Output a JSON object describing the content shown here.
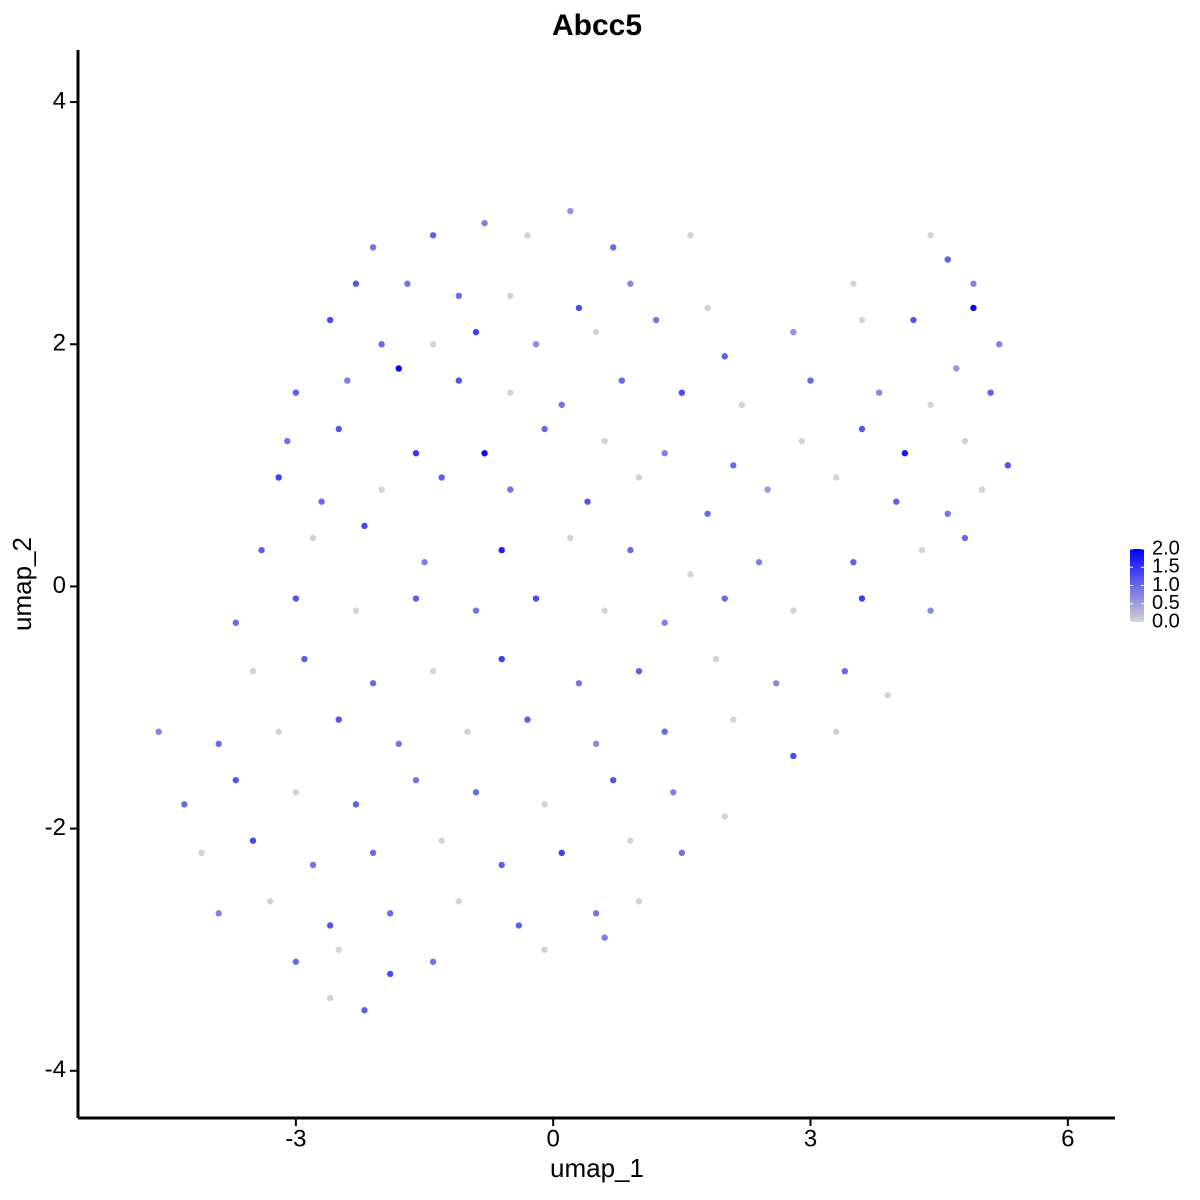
{
  "chart_data": {
    "type": "scatter",
    "title": "Abcc5",
    "xlabel": "umap_1",
    "ylabel": "umap_2",
    "xlim": [
      -5.54,
      6.55
    ],
    "ylim": [
      -4.39,
      4.43
    ],
    "xticks": [
      -3,
      0,
      3,
      6
    ],
    "yticks": [
      -4,
      -2,
      0,
      2,
      4
    ],
    "grid": false,
    "color_scale": {
      "low": "#d3d3d3",
      "high": "#0000ff",
      "limits": [
        0,
        2.0
      ],
      "ticks": [
        {
          "value": 2,
          "label": "2.0"
        },
        1.5,
        {
          "value": 1,
          "label": "1.0"
        },
        0.5,
        {
          "value": 0,
          "label": "0.0"
        }
      ]
    },
    "x": [
      -2.1,
      -1.4,
      -0.8,
      -0.3,
      0.2,
      0.7,
      1.6,
      -2.3,
      -1.7,
      -1.1,
      -0.5,
      0.3,
      0.9,
      4.4,
      4.6,
      4.9,
      3.5,
      -2.6,
      -2.0,
      -1.4,
      -0.9,
      -0.2,
      0.5,
      1.2,
      2.0,
      2.8,
      3.6,
      4.2,
      4.9,
      5.2,
      1.8,
      -3.0,
      -2.4,
      -1.8,
      -1.1,
      -0.5,
      0.1,
      0.8,
      1.5,
      2.2,
      3.0,
      3.8,
      4.4,
      5.1,
      4.7,
      -3.1,
      -2.5,
      -1.6,
      -0.8,
      -0.1,
      0.6,
      1.3,
      2.1,
      2.9,
      3.6,
      4.1,
      4.8,
      5.3,
      -3.2,
      -2.7,
      -2.0,
      -1.3,
      -0.5,
      0.4,
      1.0,
      1.8,
      2.5,
      3.3,
      4.0,
      4.6,
      5.0,
      -3.4,
      -2.8,
      -2.2,
      -1.5,
      -0.6,
      0.2,
      0.9,
      1.6,
      2.4,
      3.5,
      4.3,
      4.8,
      -3.7,
      -3.0,
      -2.3,
      -1.6,
      -0.9,
      -0.2,
      0.6,
      1.3,
      2.0,
      2.8,
      3.6,
      4.4,
      -3.5,
      -2.9,
      -2.1,
      -1.4,
      -0.6,
      0.3,
      1.0,
      1.9,
      2.6,
      3.4,
      3.9,
      -4.6,
      -3.9,
      -3.2,
      -2.5,
      -1.8,
      -1.0,
      -0.3,
      0.5,
      1.3,
      2.1,
      2.8,
      3.3,
      -4.3,
      -3.7,
      -3.0,
      -2.3,
      -1.6,
      -0.9,
      -0.1,
      0.7,
      1.4,
      2.0,
      -4.1,
      -3.5,
      -2.8,
      -2.1,
      -1.3,
      -0.6,
      0.1,
      0.9,
      1.5,
      -3.9,
      -3.3,
      -2.6,
      -1.9,
      -1.1,
      -0.4,
      0.5,
      1.0,
      -3.0,
      -2.5,
      -1.9,
      -1.4,
      -0.1,
      0.6,
      -2.6,
      -2.2
    ],
    "y": [
      2.8,
      2.9,
      3.0,
      2.9,
      3.1,
      2.8,
      2.9,
      2.5,
      2.5,
      2.4,
      2.4,
      2.3,
      2.5,
      2.9,
      2.7,
      2.5,
      2.5,
      2.2,
      2.0,
      2.0,
      2.1,
      2.0,
      2.1,
      2.2,
      1.9,
      2.1,
      2.2,
      2.2,
      2.3,
      2.0,
      2.3,
      1.6,
      1.7,
      1.8,
      1.7,
      1.6,
      1.5,
      1.7,
      1.6,
      1.5,
      1.7,
      1.6,
      1.5,
      1.6,
      1.8,
      1.2,
      1.3,
      1.1,
      1.1,
      1.3,
      1.2,
      1.1,
      1.0,
      1.2,
      1.3,
      1.1,
      1.2,
      1.0,
      0.9,
      0.7,
      0.8,
      0.9,
      0.8,
      0.7,
      0.9,
      0.6,
      0.8,
      0.9,
      0.7,
      0.6,
      0.8,
      0.3,
      0.4,
      0.5,
      0.2,
      0.3,
      0.4,
      0.3,
      0.1,
      0.2,
      0.2,
      0.3,
      0.4,
      -0.3,
      -0.1,
      -0.2,
      -0.1,
      -0.2,
      -0.1,
      -0.2,
      -0.3,
      -0.1,
      -0.2,
      -0.1,
      -0.2,
      -0.7,
      -0.6,
      -0.8,
      -0.7,
      -0.6,
      -0.8,
      -0.7,
      -0.6,
      -0.8,
      -0.7,
      -0.9,
      -1.2,
      -1.3,
      -1.2,
      -1.1,
      -1.3,
      -1.2,
      -1.1,
      -1.3,
      -1.2,
      -1.1,
      -1.4,
      -1.2,
      -1.8,
      -1.6,
      -1.7,
      -1.8,
      -1.6,
      -1.7,
      -1.8,
      -1.6,
      -1.7,
      -1.9,
      -2.2,
      -2.1,
      -2.3,
      -2.2,
      -2.1,
      -2.3,
      -2.2,
      -2.1,
      -2.2,
      -2.7,
      -2.6,
      -2.8,
      -2.7,
      -2.6,
      -2.8,
      -2.7,
      -2.6,
      -3.1,
      -3.0,
      -3.2,
      -3.1,
      -3.0,
      -2.9,
      -3.4,
      -3.5
    ],
    "values": [
      0.9,
      1.1,
      0.8,
      0,
      0.6,
      1.0,
      0,
      1.2,
      0.9,
      1.0,
      0,
      1.3,
      0.7,
      0,
      1.1,
      0.8,
      0,
      1.3,
      1.0,
      0,
      1.4,
      0.7,
      0,
      0.9,
      1.1,
      0.6,
      0,
      1.2,
      2.0,
      0.8,
      0,
      1.1,
      0.8,
      2.0,
      1.2,
      0,
      0.9,
      1.0,
      1.3,
      0,
      1.0,
      0.7,
      0,
      1.1,
      0.6,
      0.9,
      1.2,
      1.5,
      1.9,
      1.0,
      0,
      0.8,
      1.0,
      0,
      1.2,
      1.8,
      0,
      1.2,
      1.4,
      1.0,
      0,
      1.1,
      0.9,
      1.2,
      0,
      1.0,
      0.6,
      0,
      1.1,
      0.9,
      0,
      1.1,
      0,
      1.3,
      0.8,
      1.7,
      0,
      1.0,
      0,
      0.8,
      1.1,
      0,
      1.0,
      1.0,
      1.2,
      0,
      1.1,
      0.9,
      1.3,
      0,
      0.8,
      1.0,
      0,
      1.4,
      0.7,
      0,
      1.1,
      1.0,
      0,
      1.4,
      0.9,
      1.1,
      0,
      0.7,
      1.0,
      0,
      0.8,
      1.0,
      0,
      1.2,
      0.9,
      0,
      1.1,
      0.7,
      1.0,
      0,
      1.3,
      0,
      1.0,
      1.2,
      0,
      1.1,
      0.9,
      1.0,
      0,
      1.2,
      0.8,
      0,
      0,
      1.3,
      0.9,
      1.0,
      0,
      1.1,
      1.4,
      0,
      0.9,
      0.8,
      0,
      1.2,
      1.0,
      0,
      1.1,
      0.9,
      0,
      1.0,
      0,
      1.3,
      0.9,
      0,
      0.8,
      0,
      1.1
    ]
  }
}
